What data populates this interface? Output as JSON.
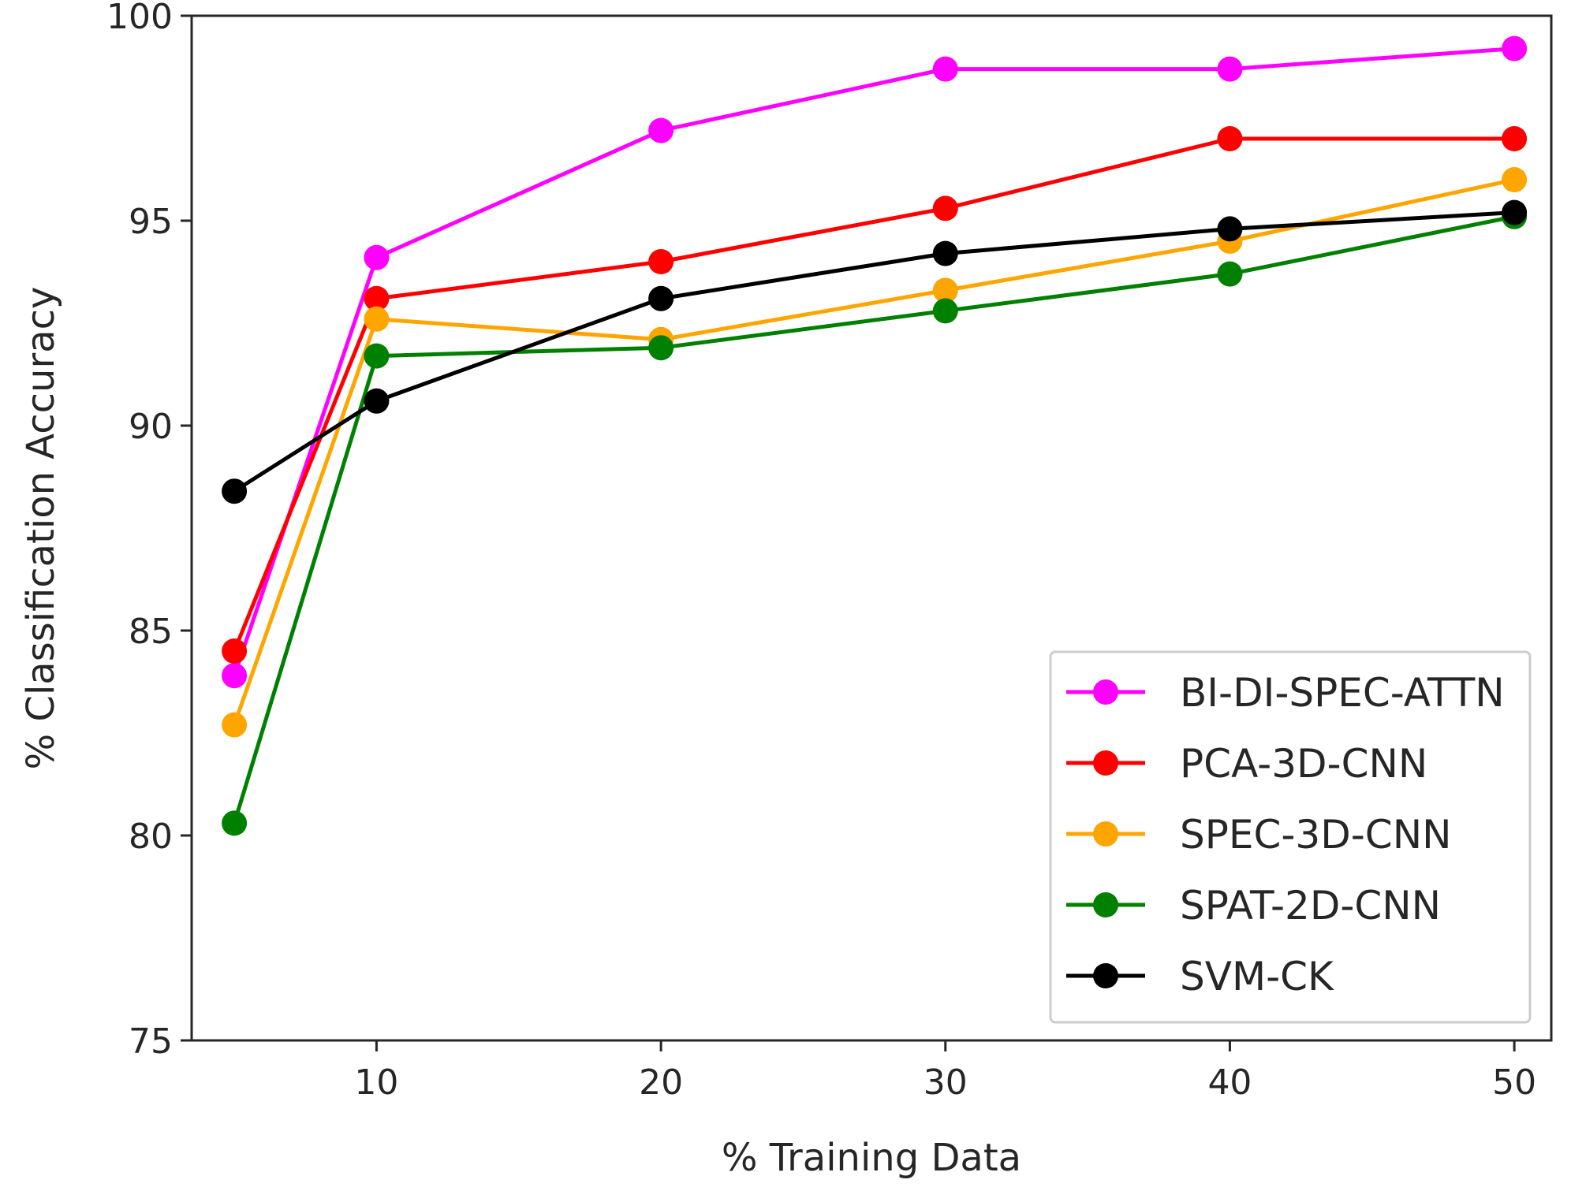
{
  "chart_data": {
    "type": "line",
    "title": "",
    "xlabel": "% Training Data",
    "ylabel": "% Classification Accuracy",
    "x": [
      5,
      10,
      20,
      30,
      40,
      50
    ],
    "xlim": [
      3.5,
      51.3
    ],
    "ylim": [
      75,
      100
    ],
    "xticks": [
      10,
      20,
      30,
      40,
      50
    ],
    "yticks": [
      75,
      80,
      85,
      90,
      95,
      100
    ],
    "grid": false,
    "legend_position": "lower-right",
    "series": [
      {
        "name": "BI-DI-SPEC-ATTN",
        "color": "#ff00ff",
        "values": [
          83.9,
          94.1,
          97.2,
          98.7,
          98.7,
          99.2
        ]
      },
      {
        "name": "PCA-3D-CNN",
        "color": "#ff0000",
        "values": [
          84.5,
          93.1,
          94.0,
          95.3,
          97.0,
          97.0
        ]
      },
      {
        "name": "SPEC-3D-CNN",
        "color": "#ffa500",
        "values": [
          82.7,
          92.6,
          92.1,
          93.3,
          94.5,
          96.0
        ]
      },
      {
        "name": "SPAT-2D-CNN",
        "color": "#008000",
        "values": [
          80.3,
          91.7,
          91.9,
          92.8,
          93.7,
          95.1
        ]
      },
      {
        "name": "SVM-CK",
        "color": "#000000",
        "values": [
          88.4,
          90.6,
          93.1,
          94.2,
          94.8,
          95.2
        ]
      }
    ]
  }
}
